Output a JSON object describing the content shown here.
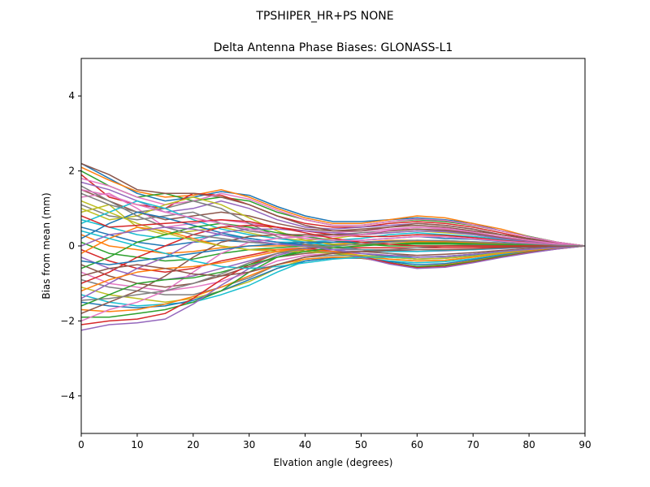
{
  "figure": {
    "suptitle": "TPSHIPER_HR+PS  NONE"
  },
  "chart_data": {
    "type": "line",
    "title": "Delta Antenna Phase Biases: GLONASS-L1",
    "xlabel": "Elvation angle (degrees)",
    "ylabel": "Bias from mean (mm)",
    "xlim": [
      0,
      90
    ],
    "ylim": [
      -5,
      5
    ],
    "xticks": [
      0,
      10,
      20,
      30,
      40,
      50,
      60,
      70,
      80,
      90
    ],
    "yticks": [
      -4,
      -2,
      0,
      2,
      4
    ],
    "xtick_labels": [
      "0",
      "10",
      "20",
      "30",
      "40",
      "50",
      "60",
      "70",
      "80",
      "90"
    ],
    "ytick_labels": [
      "−4",
      "−2",
      "0",
      "2",
      "4"
    ],
    "grid": false,
    "legend": "none",
    "x": [
      0,
      5,
      10,
      15,
      20,
      25,
      30,
      35,
      40,
      45,
      50,
      55,
      60,
      65,
      70,
      75,
      80,
      85,
      90
    ],
    "colors": [
      "#1f77b4",
      "#ff7f0e",
      "#2ca02c",
      "#d62728",
      "#9467bd",
      "#8c564b",
      "#e377c2",
      "#7f7f7f",
      "#bcbd22",
      "#17becf"
    ],
    "series": [
      {
        "values": [
          2.2,
          1.8,
          1.4,
          1.2,
          1.3,
          1.45,
          1.35,
          1.05,
          0.8,
          0.65,
          0.65,
          0.7,
          0.75,
          0.7,
          0.6,
          0.4,
          0.25,
          0.1,
          0
        ]
      },
      {
        "values": [
          2.1,
          1.75,
          1.45,
          1.3,
          1.35,
          1.5,
          1.3,
          1.0,
          0.75,
          0.6,
          0.6,
          0.7,
          0.8,
          0.75,
          0.6,
          0.45,
          0.25,
          0.1,
          0
        ]
      },
      {
        "values": [
          2.0,
          1.6,
          1.3,
          1.4,
          1.2,
          1.3,
          1.2,
          0.9,
          0.7,
          0.55,
          0.55,
          0.65,
          0.7,
          0.65,
          0.55,
          0.4,
          0.25,
          0.1,
          0
        ]
      },
      {
        "values": [
          1.9,
          1.3,
          1.1,
          1.0,
          1.4,
          1.35,
          1.1,
          0.8,
          0.6,
          0.5,
          0.5,
          0.6,
          0.65,
          0.6,
          0.5,
          0.35,
          0.2,
          0.08,
          0
        ]
      },
      {
        "values": [
          1.7,
          1.5,
          1.2,
          0.9,
          1.0,
          1.2,
          1.0,
          0.7,
          0.5,
          0.45,
          0.5,
          0.55,
          0.6,
          0.55,
          0.45,
          0.3,
          0.2,
          0.08,
          0
        ]
      },
      {
        "values": [
          1.5,
          1.2,
          0.9,
          0.7,
          0.8,
          0.9,
          0.8,
          0.6,
          0.45,
          0.4,
          0.45,
          0.5,
          0.55,
          0.5,
          0.4,
          0.3,
          0.18,
          0.07,
          0
        ]
      },
      {
        "values": [
          1.3,
          1.4,
          1.0,
          0.5,
          0.6,
          0.7,
          0.6,
          0.5,
          0.4,
          0.35,
          0.4,
          0.45,
          0.5,
          0.45,
          0.35,
          0.25,
          0.15,
          0.06,
          0
        ]
      },
      {
        "values": [
          1.1,
          0.8,
          0.7,
          0.8,
          0.9,
          0.6,
          0.4,
          0.3,
          0.25,
          0.3,
          0.35,
          0.4,
          0.45,
          0.4,
          0.32,
          0.22,
          0.14,
          0.05,
          0
        ]
      },
      {
        "values": [
          0.9,
          1.1,
          0.5,
          0.3,
          0.4,
          0.5,
          0.35,
          0.2,
          0.15,
          0.2,
          0.3,
          0.35,
          0.4,
          0.35,
          0.3,
          0.2,
          0.12,
          0.05,
          0
        ]
      },
      {
        "values": [
          0.7,
          0.5,
          0.3,
          0.2,
          0.2,
          0.3,
          0.2,
          0.1,
          0.1,
          0.15,
          0.2,
          0.3,
          0.35,
          0.3,
          0.25,
          0.18,
          0.1,
          0.04,
          0
        ]
      },
      {
        "values": [
          0.5,
          0.3,
          0.1,
          0.0,
          0.1,
          0.15,
          0.1,
          0.05,
          0.05,
          0.1,
          0.15,
          0.2,
          0.25,
          0.2,
          0.18,
          0.12,
          0.08,
          0.03,
          0
        ]
      },
      {
        "values": [
          0.3,
          0.0,
          -0.1,
          -0.2,
          -0.15,
          -0.05,
          0.0,
          0.0,
          0.02,
          0.05,
          0.1,
          0.15,
          0.15,
          0.12,
          0.1,
          0.07,
          0.04,
          0.02,
          0
        ]
      },
      {
        "values": [
          0.1,
          -0.2,
          -0.3,
          -0.4,
          -0.35,
          -0.2,
          -0.1,
          -0.05,
          0.0,
          0.02,
          0.05,
          0.05,
          0.05,
          0.05,
          0.04,
          0.03,
          0.02,
          0.01,
          0
        ]
      },
      {
        "values": [
          -0.1,
          -0.4,
          -0.6,
          -0.7,
          -0.6,
          -0.4,
          -0.25,
          -0.1,
          -0.05,
          -0.05,
          -0.05,
          -0.05,
          -0.05,
          -0.05,
          -0.04,
          -0.03,
          -0.02,
          -0.01,
          0
        ]
      },
      {
        "values": [
          -0.3,
          -0.6,
          -0.8,
          -0.9,
          -0.8,
          -0.6,
          -0.4,
          -0.2,
          -0.1,
          -0.1,
          -0.1,
          -0.12,
          -0.15,
          -0.13,
          -0.1,
          -0.07,
          -0.04,
          -0.02,
          0
        ]
      },
      {
        "values": [
          -0.5,
          -0.8,
          -1.0,
          -1.1,
          -1.0,
          -0.8,
          -0.55,
          -0.3,
          -0.2,
          -0.15,
          -0.15,
          -0.2,
          -0.25,
          -0.22,
          -0.18,
          -0.12,
          -0.07,
          -0.03,
          0
        ]
      },
      {
        "values": [
          -0.7,
          -1.0,
          -1.1,
          -1.2,
          -1.1,
          -0.95,
          -0.7,
          -0.4,
          -0.25,
          -0.2,
          -0.2,
          -0.25,
          -0.3,
          -0.28,
          -0.22,
          -0.15,
          -0.09,
          -0.04,
          0
        ]
      },
      {
        "values": [
          -0.9,
          -1.1,
          -1.2,
          -1.3,
          -1.3,
          -1.1,
          -0.85,
          -0.5,
          -0.3,
          -0.25,
          -0.25,
          -0.3,
          -0.35,
          -0.32,
          -0.26,
          -0.18,
          -0.1,
          -0.04,
          0
        ]
      },
      {
        "values": [
          -1.1,
          -1.3,
          -1.4,
          -1.5,
          -1.4,
          -1.2,
          -0.95,
          -0.6,
          -0.35,
          -0.3,
          -0.3,
          -0.35,
          -0.4,
          -0.38,
          -0.3,
          -0.2,
          -0.12,
          -0.05,
          0
        ]
      },
      {
        "values": [
          -1.3,
          -1.5,
          -1.6,
          -1.55,
          -1.5,
          -1.3,
          -1.05,
          -0.7,
          -0.4,
          -0.32,
          -0.32,
          -0.4,
          -0.45,
          -0.42,
          -0.34,
          -0.23,
          -0.14,
          -0.06,
          0
        ]
      },
      {
        "values": [
          -1.5,
          -1.6,
          -1.65,
          -1.6,
          -1.45,
          -1.2,
          -0.9,
          -0.6,
          -0.4,
          -0.32,
          -0.33,
          -0.42,
          -0.5,
          -0.47,
          -0.37,
          -0.25,
          -0.15,
          -0.06,
          0
        ]
      },
      {
        "values": [
          -1.7,
          -1.75,
          -1.7,
          -1.55,
          -1.35,
          -1.1,
          -0.8,
          -0.5,
          -0.35,
          -0.3,
          -0.32,
          -0.45,
          -0.55,
          -0.5,
          -0.4,
          -0.27,
          -0.16,
          -0.07,
          0
        ]
      },
      {
        "values": [
          -1.9,
          -1.9,
          -1.8,
          -1.7,
          -1.5,
          -1.2,
          -0.7,
          -0.3,
          -0.1,
          -0.2,
          -0.3,
          -0.45,
          -0.55,
          -0.52,
          -0.42,
          -0.28,
          -0.17,
          -0.07,
          0
        ]
      },
      {
        "values": [
          -2.1,
          -2.0,
          -1.95,
          -1.8,
          -1.4,
          -0.9,
          -0.5,
          -0.2,
          -0.05,
          -0.15,
          -0.28,
          -0.45,
          -0.58,
          -0.55,
          -0.44,
          -0.3,
          -0.18,
          -0.08,
          0
        ]
      },
      {
        "values": [
          -2.25,
          -2.1,
          -2.05,
          -1.95,
          -1.55,
          -1.05,
          -0.6,
          -0.25,
          -0.08,
          -0.18,
          -0.3,
          -0.48,
          -0.6,
          -0.57,
          -0.45,
          -0.31,
          -0.19,
          -0.08,
          0
        ]
      },
      {
        "values": [
          2.2,
          1.9,
          1.5,
          1.4,
          1.4,
          1.3,
          1.1,
          0.8,
          0.55,
          0.4,
          0.4,
          0.5,
          0.6,
          0.55,
          0.45,
          0.3,
          0.2,
          0.08,
          0
        ]
      },
      {
        "values": [
          1.8,
          1.6,
          1.3,
          1.1,
          1.2,
          1.4,
          1.25,
          0.95,
          0.7,
          0.55,
          0.55,
          0.65,
          0.72,
          0.68,
          0.56,
          0.4,
          0.24,
          0.1,
          0
        ]
      },
      {
        "values": [
          1.4,
          1.1,
          0.9,
          1.0,
          1.2,
          1.0,
          0.6,
          0.25,
          0.05,
          -0.05,
          -0.1,
          -0.1,
          -0.05,
          0.0,
          0.02,
          0.02,
          0.01,
          0.0,
          0
        ]
      },
      {
        "values": [
          1.0,
          0.7,
          0.8,
          1.1,
          1.3,
          1.1,
          0.75,
          0.4,
          0.15,
          0.05,
          0.02,
          0.05,
          0.1,
          0.1,
          0.08,
          0.06,
          0.03,
          0.01,
          0
        ]
      },
      {
        "values": [
          0.6,
          0.9,
          1.2,
          1.0,
          0.7,
          0.45,
          0.3,
          0.2,
          0.1,
          0.0,
          -0.1,
          -0.15,
          -0.15,
          -0.12,
          -0.1,
          -0.06,
          -0.03,
          -0.01,
          0
        ]
      },
      {
        "values": [
          0.2,
          0.6,
          0.9,
          0.75,
          0.55,
          0.35,
          0.2,
          0.1,
          0.0,
          -0.1,
          -0.2,
          -0.28,
          -0.35,
          -0.33,
          -0.26,
          -0.18,
          -0.1,
          -0.04,
          0
        ]
      },
      {
        "values": [
          -0.2,
          0.2,
          0.5,
          0.4,
          0.2,
          0.0,
          -0.1,
          -0.1,
          -0.1,
          -0.15,
          -0.25,
          -0.35,
          -0.4,
          -0.38,
          -0.3,
          -0.2,
          -0.12,
          -0.05,
          0
        ]
      },
      {
        "values": [
          -0.6,
          -0.3,
          0.1,
          0.3,
          0.5,
          0.6,
          0.5,
          0.35,
          0.25,
          0.15,
          0.05,
          0.0,
          0.0,
          0.0,
          0.0,
          0.0,
          0.0,
          0.0,
          0
        ]
      },
      {
        "values": [
          -1.0,
          -0.7,
          -0.3,
          0.0,
          0.3,
          0.5,
          0.55,
          0.5,
          0.4,
          0.3,
          0.25,
          0.25,
          0.3,
          0.28,
          0.22,
          0.15,
          0.09,
          0.04,
          0
        ]
      },
      {
        "values": [
          -1.4,
          -1.0,
          -0.6,
          -0.3,
          0.1,
          0.35,
          0.45,
          0.45,
          0.4,
          0.35,
          0.3,
          0.35,
          0.4,
          0.38,
          0.3,
          0.2,
          0.12,
          0.05,
          0
        ]
      },
      {
        "values": [
          -1.8,
          -1.5,
          -1.2,
          -0.8,
          -0.3,
          0.1,
          0.25,
          0.3,
          0.3,
          0.3,
          0.3,
          0.4,
          0.45,
          0.42,
          0.34,
          0.23,
          0.14,
          0.06,
          0
        ]
      },
      {
        "values": [
          -2.0,
          -1.7,
          -1.5,
          -1.2,
          -0.7,
          -0.2,
          0.1,
          0.2,
          0.25,
          0.25,
          0.3,
          0.42,
          0.5,
          0.47,
          0.37,
          0.25,
          0.15,
          0.06,
          0
        ]
      },
      {
        "values": [
          1.6,
          1.2,
          0.8,
          0.5,
          0.3,
          0.2,
          0.1,
          0.05,
          0.0,
          -0.05,
          -0.1,
          -0.2,
          -0.3,
          -0.28,
          -0.22,
          -0.15,
          -0.09,
          -0.04,
          0
        ]
      },
      {
        "values": [
          1.2,
          0.9,
          0.6,
          0.35,
          0.15,
          0.0,
          -0.1,
          -0.15,
          -0.15,
          -0.2,
          -0.25,
          -0.3,
          -0.35,
          -0.33,
          -0.27,
          -0.18,
          -0.1,
          -0.04,
          0
        ]
      },
      {
        "values": [
          0.4,
          0.2,
          0.0,
          -0.2,
          -0.4,
          -0.55,
          -0.6,
          -0.55,
          -0.45,
          -0.35,
          -0.3,
          -0.3,
          -0.3,
          -0.28,
          -0.22,
          -0.15,
          -0.09,
          -0.04,
          0
        ]
      },
      {
        "values": [
          -0.4,
          -0.5,
          -0.4,
          -0.3,
          -0.2,
          -0.1,
          0.0,
          0.05,
          0.1,
          0.1,
          0.1,
          0.12,
          0.15,
          0.14,
          0.11,
          0.08,
          0.05,
          0.02,
          0
        ]
      },
      {
        "values": [
          -1.2,
          -0.9,
          -0.7,
          -0.6,
          -0.55,
          -0.45,
          -0.3,
          -0.15,
          -0.05,
          0.0,
          0.05,
          0.1,
          0.12,
          0.11,
          0.09,
          0.06,
          0.04,
          0.02,
          0
        ]
      },
      {
        "values": [
          -1.6,
          -1.3,
          -1.0,
          -0.9,
          -0.85,
          -0.7,
          -0.5,
          -0.3,
          -0.15,
          -0.05,
          0.0,
          0.05,
          0.08,
          0.08,
          0.06,
          0.04,
          0.03,
          0.01,
          0
        ]
      },
      {
        "values": [
          0.8,
          0.5,
          0.55,
          0.6,
          0.65,
          0.7,
          0.65,
          0.5,
          0.35,
          0.2,
          0.1,
          0.05,
          0.0,
          0.0,
          0.0,
          0.0,
          0.0,
          0.0,
          0
        ]
      },
      {
        "values": [
          0.0,
          0.3,
          0.4,
          0.5,
          0.45,
          0.3,
          0.15,
          0.05,
          0.0,
          -0.1,
          -0.2,
          -0.25,
          -0.3,
          -0.28,
          -0.22,
          -0.15,
          -0.09,
          -0.04,
          0
        ]
      },
      {
        "values": [
          -0.8,
          -0.6,
          -0.5,
          -0.6,
          -0.75,
          -0.8,
          -0.7,
          -0.5,
          -0.3,
          -0.2,
          -0.15,
          -0.12,
          -0.1,
          -0.1,
          -0.08,
          -0.05,
          -0.03,
          -0.01,
          0
        ]
      },
      {
        "values": [
          1.5,
          1.35,
          1.1,
          0.9,
          0.75,
          0.6,
          0.45,
          0.3,
          0.2,
          0.15,
          0.15,
          0.2,
          0.25,
          0.24,
          0.19,
          0.13,
          0.08,
          0.03,
          0
        ]
      },
      {
        "values": [
          -1.45,
          -1.4,
          -1.3,
          -1.2,
          -1.0,
          -0.75,
          -0.45,
          -0.2,
          -0.05,
          0.0,
          0.05,
          0.1,
          0.15,
          0.14,
          0.11,
          0.08,
          0.05,
          0.02,
          0
        ]
      }
    ]
  }
}
